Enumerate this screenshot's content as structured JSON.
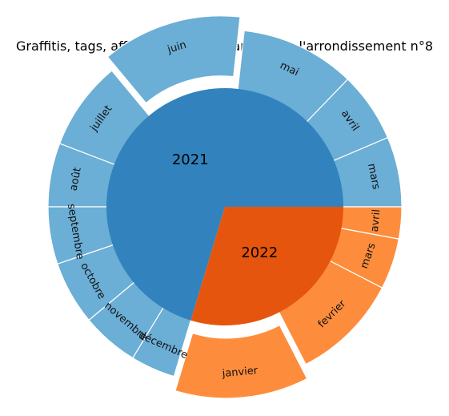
{
  "chart_data": {
    "type": "sunburst",
    "title": "Graffitis, tags, affiches et autocollants dans l'arrondissement n°8",
    "colors": {
      "inner_2021": "#3282bd",
      "inner_2022": "#e6550d",
      "outer_2021": "#6baed6",
      "outer_2022": "#fd8d3c"
    },
    "years": [
      {
        "name": "2021",
        "months": [
          {
            "label": "mars",
            "value": 55
          },
          {
            "label": "avril",
            "value": 55
          },
          {
            "label": "mai",
            "value": 90
          },
          {
            "label": "juin",
            "value": 110,
            "exploded": true
          },
          {
            "label": "juillet",
            "value": 70
          },
          {
            "label": "août",
            "value": 50
          },
          {
            "label": "septembre",
            "value": 45
          },
          {
            "label": "octobre",
            "value": 50
          },
          {
            "label": "novembre",
            "value": 45
          },
          {
            "label": "décembre",
            "value": 35
          }
        ]
      },
      {
        "name": "2022",
        "months": [
          {
            "label": "janvier",
            "value": 105,
            "exploded": true
          },
          {
            "label": "fevrier",
            "value": 85
          },
          {
            "label": "mars",
            "value": 40
          },
          {
            "label": "avril",
            "value": 25
          }
        ]
      }
    ]
  }
}
